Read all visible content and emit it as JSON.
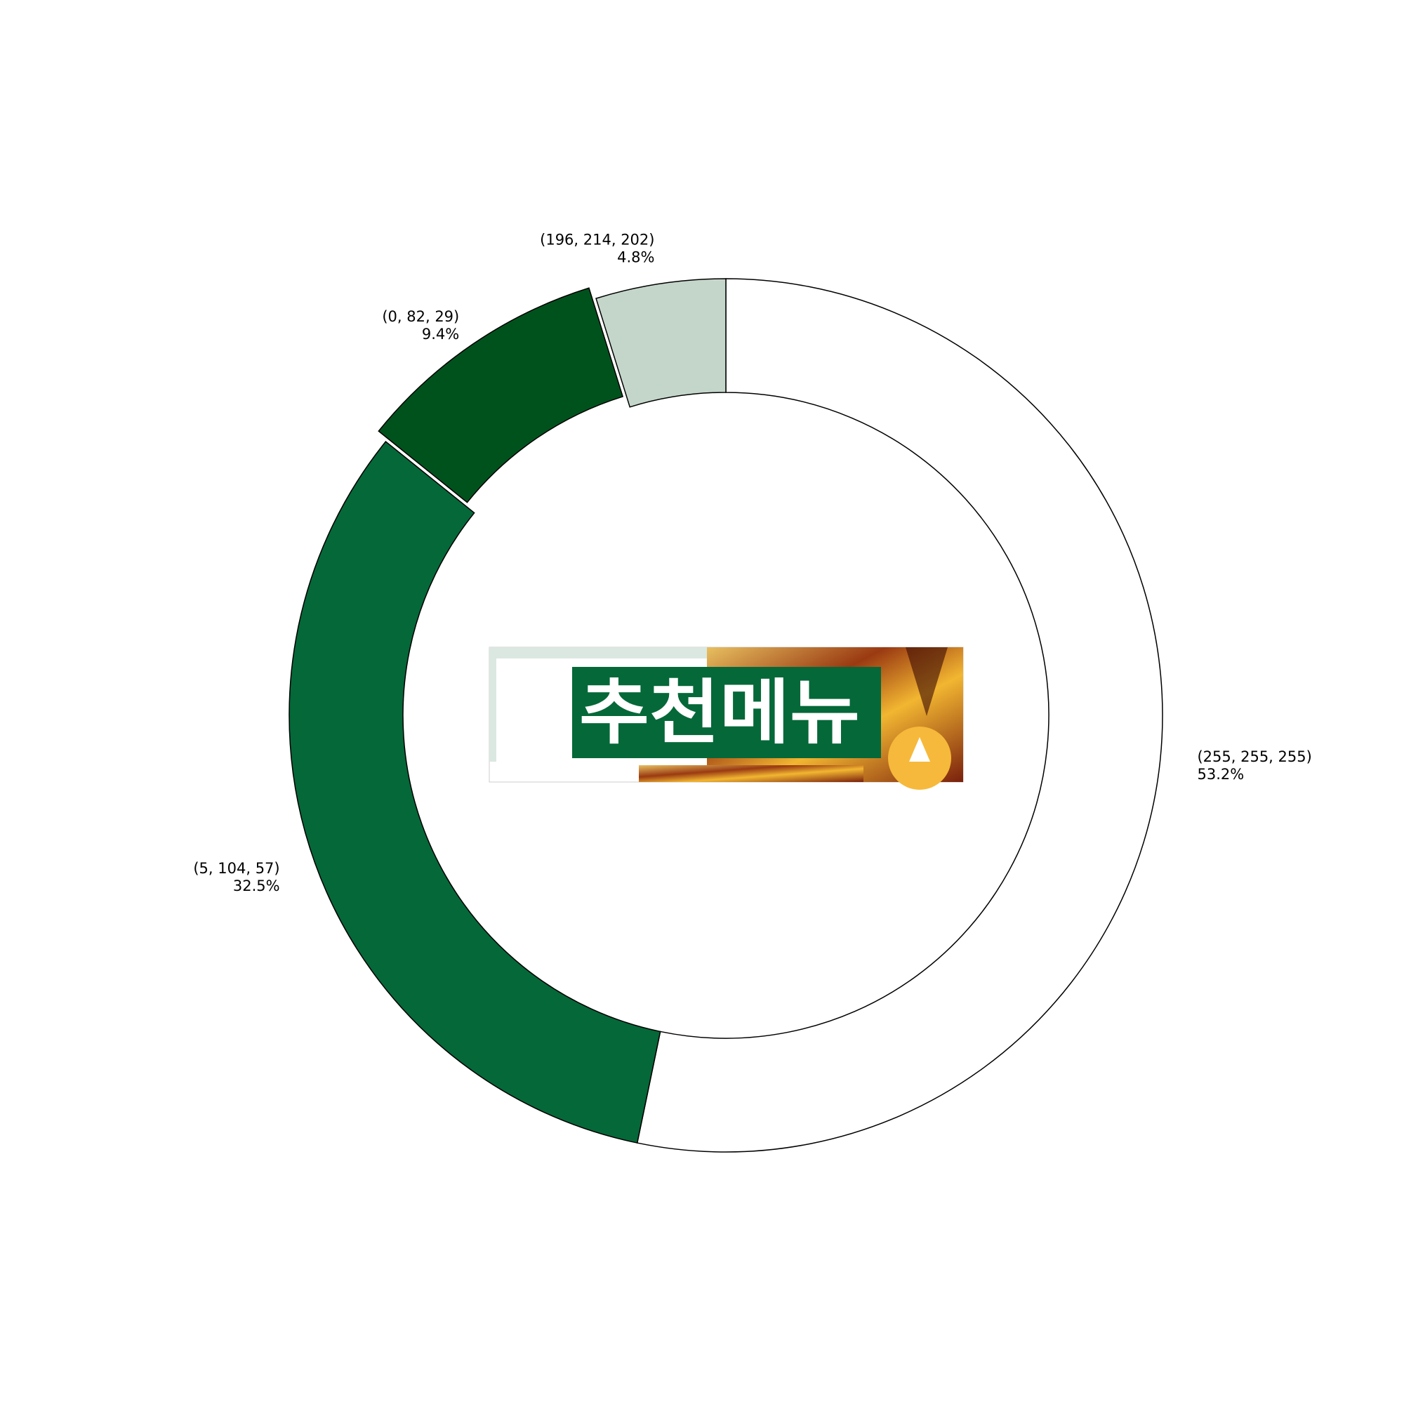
{
  "chart_data": {
    "type": "pie",
    "donut": true,
    "start": "12 o'clock",
    "direction": "clockwise",
    "slices": [
      {
        "label": "(255, 255, 255)",
        "value": 53.2,
        "pct_label": "53.2%",
        "color": "#ffffff",
        "exploded": false
      },
      {
        "label": "(5, 104, 57)",
        "value": 32.5,
        "pct_label": "32.5%",
        "color": "#056839",
        "exploded": false
      },
      {
        "label": "(0, 82, 29)",
        "value": 9.4,
        "pct_label": "9.4%",
        "color": "#00521d",
        "exploded": true
      },
      {
        "label": "(196, 214, 202)",
        "value": 4.8,
        "pct_label": "4.8%",
        "color": "#c4d6ca",
        "exploded": false
      }
    ]
  },
  "center_image": {
    "icon": "korean-menu-banner",
    "text": "추천메뉴",
    "banner_color": "#056839"
  }
}
